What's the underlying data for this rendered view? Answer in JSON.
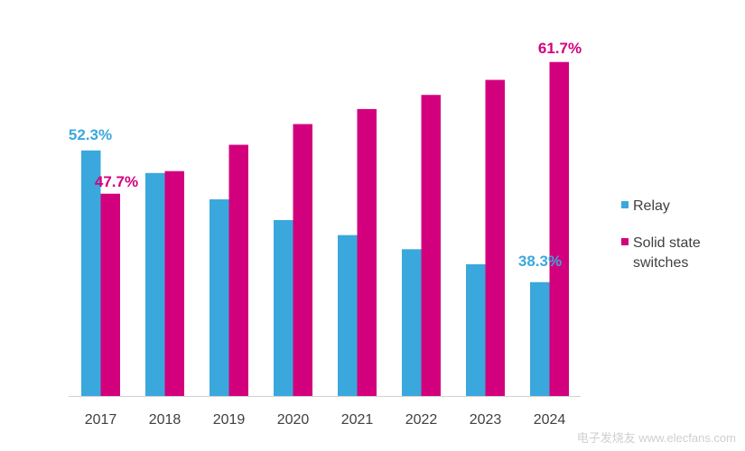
{
  "chart_data": {
    "type": "bar",
    "categories": [
      "2017",
      "2018",
      "2019",
      "2020",
      "2021",
      "2022",
      "2023",
      "2024"
    ],
    "series": [
      {
        "name": "Relay",
        "color": "#3aa8dc",
        "values": [
          52.3,
          49.9,
          47.1,
          44.9,
          43.3,
          41.8,
          40.2,
          38.3
        ]
      },
      {
        "name": "Solid state switches",
        "legend_lines": [
          "Solid state",
          "switches"
        ],
        "color": "#d3007d",
        "values": [
          47.7,
          50.1,
          52.9,
          55.1,
          56.7,
          58.2,
          59.8,
          61.7
        ]
      }
    ],
    "data_labels": [
      {
        "series": 0,
        "index": 0,
        "text": "52.3%"
      },
      {
        "series": 1,
        "index": 0,
        "text": "47.7%"
      },
      {
        "series": 0,
        "index": 7,
        "text": "38.3%"
      },
      {
        "series": 1,
        "index": 7,
        "text": "61.7%"
      }
    ],
    "ylim": [
      26.2,
      64
    ],
    "grid": false,
    "legend_position": "right",
    "xlabel": "",
    "ylabel": "",
    "title": ""
  },
  "watermark": "电子发烧友 www.elecfans.com"
}
